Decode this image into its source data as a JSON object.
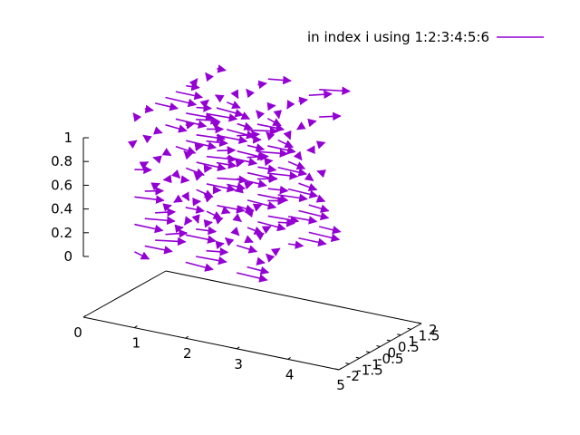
{
  "chart_data": {
    "type": "vector3d",
    "title": "",
    "legend": {
      "label": "in index i using 1:2:3:4:5:6",
      "placement": "top-right",
      "color": "#9400d3"
    },
    "series_color": "#9400d3",
    "axes": {
      "x": {
        "range": [
          0,
          5
        ],
        "ticks": [
          "0",
          "1",
          "2",
          "3",
          "4",
          "5"
        ]
      },
      "y": {
        "range": [
          -2,
          2
        ],
        "ticks": [
          "-2",
          "-1.5",
          "-1",
          "-0.5",
          "0",
          "0.5",
          "1",
          "1.5",
          "2"
        ]
      },
      "z": {
        "range": [
          0,
          1
        ],
        "ticks": [
          "0",
          "0.2",
          "0.4",
          "0.6",
          "0.8",
          "1"
        ]
      }
    },
    "grid": false,
    "vector_sheets": [
      {
        "x_position": 1,
        "y_range": [
          -2,
          2
        ],
        "z_range": [
          0.1,
          1.0
        ]
      },
      {
        "x_position": 2,
        "y_range": [
          -2,
          2
        ],
        "z_range": [
          0.1,
          1.0
        ]
      },
      {
        "x_position": 3,
        "y_range": [
          -2,
          2
        ],
        "z_range": [
          0.1,
          1.0
        ]
      }
    ]
  }
}
